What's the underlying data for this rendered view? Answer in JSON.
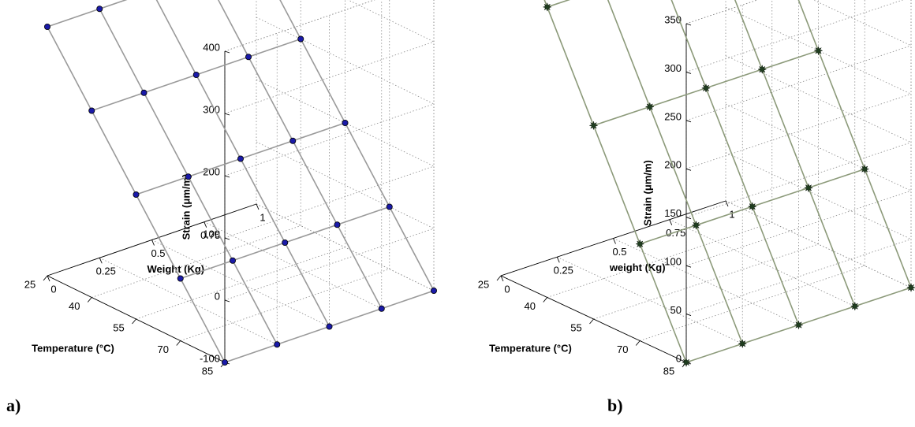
{
  "panels": {
    "a": {
      "label": "a)"
    },
    "b": {
      "label": "b)"
    }
  },
  "chart_data": [
    {
      "type": "surface3d",
      "panel": "a)",
      "xlabel": "Weight (Kg)",
      "ylabel": "Temperature  (°C)",
      "zlabel": "Strain (μm/m)",
      "x_ticks": [
        "0",
        "0.25",
        "0.5",
        "0.75",
        "1"
      ],
      "y_ticks": [
        "25",
        "40",
        "55",
        "70",
        "85"
      ],
      "z_ticks": [
        "-100",
        "0",
        "100",
        "200",
        "300",
        "400"
      ],
      "xlim": [
        0,
        1
      ],
      "ylim": [
        25,
        85
      ],
      "zlim": [
        -100,
        400
      ],
      "x": [
        0,
        0.25,
        0.5,
        0.75,
        1
      ],
      "y": [
        85,
        70,
        55,
        40,
        25
      ],
      "z": [
        [
          -100,
          -100,
          -100,
          -100,
          -100
        ],
        [
          0,
          0,
          0,
          0,
          0
        ],
        [
          100,
          100,
          100,
          100,
          100
        ],
        [
          200,
          200,
          200,
          200,
          200
        ],
        [
          300,
          300,
          300,
          300,
          300
        ]
      ],
      "marker_color": "#1a1aa8",
      "line_color": "#9a9a9a",
      "grid": true
    },
    {
      "type": "surface3d",
      "panel": "b)",
      "xlabel": "weight (Kg)",
      "ylabel": "Temperature  (°C)",
      "zlabel": "Strain (μm/m)",
      "x_ticks": [
        "0",
        "0.25",
        "0.5",
        "0.75",
        "1"
      ],
      "y_ticks": [
        "25",
        "40",
        "55",
        "70",
        "85"
      ],
      "z_ticks": [
        "0",
        "50",
        "100",
        "150",
        "200",
        "250",
        "300",
        "350"
      ],
      "xlim": [
        0,
        1
      ],
      "ylim": [
        25,
        85
      ],
      "zlim": [
        0,
        350
      ],
      "x": [
        0,
        0.25,
        0.5,
        0.75,
        1
      ],
      "y": [
        85,
        70,
        55,
        40,
        25
      ],
      "z": [
        [
          0,
          0,
          0,
          0,
          0
        ],
        [
          100,
          100,
          100,
          100,
          100
        ],
        [
          200,
          200,
          200,
          200,
          200
        ],
        [
          300,
          300,
          300,
          300,
          300
        ],
        [
          400,
          400,
          400,
          400,
          400
        ]
      ],
      "marker_color": "#1f3d1f",
      "line_color": "#8c9a7a",
      "grid": true
    }
  ]
}
